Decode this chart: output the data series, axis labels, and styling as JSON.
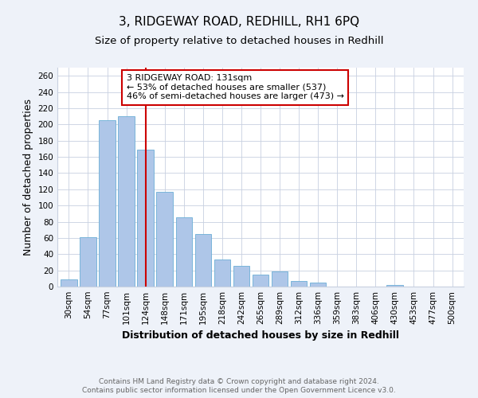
{
  "title": "3, RIDGEWAY ROAD, REDHILL, RH1 6PQ",
  "subtitle": "Size of property relative to detached houses in Redhill",
  "xlabel": "Distribution of detached houses by size in Redhill",
  "ylabel": "Number of detached properties",
  "bar_labels": [
    "30sqm",
    "54sqm",
    "77sqm",
    "101sqm",
    "124sqm",
    "148sqm",
    "171sqm",
    "195sqm",
    "218sqm",
    "242sqm",
    "265sqm",
    "289sqm",
    "312sqm",
    "336sqm",
    "359sqm",
    "383sqm",
    "406sqm",
    "430sqm",
    "453sqm",
    "477sqm",
    "500sqm"
  ],
  "bar_values": [
    9,
    61,
    205,
    210,
    169,
    117,
    85,
    65,
    33,
    26,
    15,
    19,
    7,
    5,
    0,
    0,
    0,
    2,
    0,
    0,
    0
  ],
  "bar_color": "#aec6e8",
  "bar_edge_color": "#6baed6",
  "vline_index": 4,
  "vline_color": "#cc0000",
  "annotation_title": "3 RIDGEWAY ROAD: 131sqm",
  "annotation_line1": "← 53% of detached houses are smaller (537)",
  "annotation_line2": "46% of semi-detached houses are larger (473) →",
  "annotation_box_color": "#ffffff",
  "annotation_border_color": "#cc0000",
  "ylim": [
    0,
    270
  ],
  "yticks": [
    0,
    20,
    40,
    60,
    80,
    100,
    120,
    140,
    160,
    180,
    200,
    220,
    240,
    260
  ],
  "footer1": "Contains HM Land Registry data © Crown copyright and database right 2024.",
  "footer2": "Contains public sector information licensed under the Open Government Licence v3.0.",
  "bg_color": "#eef2f9",
  "plot_bg_color": "#ffffff",
  "grid_color": "#c8d0e0",
  "title_fontsize": 11,
  "subtitle_fontsize": 9.5,
  "axis_label_fontsize": 9,
  "tick_fontsize": 7.5,
  "annotation_fontsize": 8,
  "footer_fontsize": 6.5
}
